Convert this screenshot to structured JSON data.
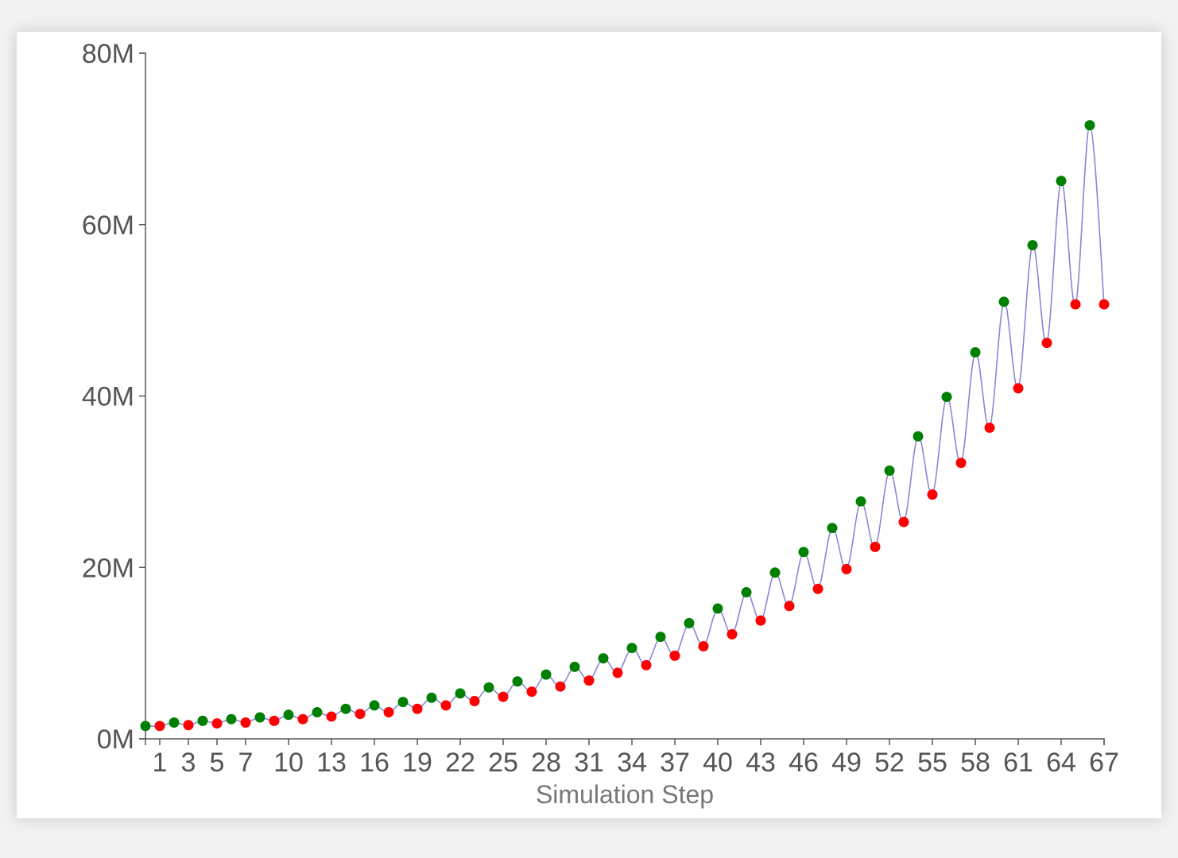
{
  "chart_data": {
    "type": "line",
    "title": "",
    "xlabel": "Simulation Step",
    "ylabel": "",
    "x_tick_labels": [
      "1",
      "3",
      "5",
      "7",
      "10",
      "13",
      "16",
      "19",
      "22",
      "25",
      "28",
      "31",
      "34",
      "37",
      "40",
      "43",
      "46",
      "49",
      "52",
      "55",
      "58",
      "61",
      "64",
      "67"
    ],
    "y_ticks": [
      0,
      20000000,
      40000000,
      60000000,
      80000000
    ],
    "y_tick_labels": [
      "0M",
      "20M",
      "40M",
      "60M",
      "80M"
    ],
    "xlim": [
      0,
      67
    ],
    "ylim": [
      0,
      80000000
    ],
    "grid": false,
    "colors": {
      "line": "#8a86d6",
      "up": "#008000",
      "down": "#ff0000",
      "axis": "#555555"
    },
    "x": [
      0,
      1,
      2,
      3,
      4,
      5,
      6,
      7,
      8,
      9,
      10,
      11,
      12,
      13,
      14,
      15,
      16,
      17,
      18,
      19,
      20,
      21,
      22,
      23,
      24,
      25,
      26,
      27,
      28,
      29,
      30,
      31,
      32,
      33,
      34,
      35,
      36,
      37,
      38,
      39,
      40,
      41,
      42,
      43,
      44,
      45,
      46,
      47,
      48,
      49,
      50,
      51,
      52,
      53,
      54,
      55,
      56,
      57,
      58,
      59,
      60,
      61,
      62,
      63,
      64,
      65,
      66,
      67
    ],
    "values": [
      1500000,
      1500000,
      1900000,
      1600000,
      2100000,
      1800000,
      2300000,
      1900000,
      2500000,
      2100000,
      2800000,
      2300000,
      3100000,
      2600000,
      3500000,
      2900000,
      3900000,
      3100000,
      4300000,
      3500000,
      4800000,
      3900000,
      5300000,
      4400000,
      6000000,
      4900000,
      6700000,
      5500000,
      7500000,
      6100000,
      8400000,
      6800000,
      9400000,
      7700000,
      10600000,
      8600000,
      11900000,
      9700000,
      13500000,
      10800000,
      15200000,
      12200000,
      17100000,
      13800000,
      19400000,
      15500000,
      21800000,
      17500000,
      24600000,
      19800000,
      27700000,
      22400000,
      31300000,
      25300000,
      35300000,
      28500000,
      39900000,
      32200000,
      45100000,
      36300000,
      51000000,
      40900000,
      57600000,
      46200000,
      65100000,
      50700000,
      71600000,
      50700000
    ],
    "point_types": [
      "up",
      "down",
      "up",
      "down",
      "up",
      "down",
      "up",
      "down",
      "up",
      "down",
      "up",
      "down",
      "up",
      "down",
      "up",
      "down",
      "up",
      "down",
      "up",
      "down",
      "up",
      "down",
      "up",
      "down",
      "up",
      "down",
      "up",
      "down",
      "up",
      "down",
      "up",
      "down",
      "up",
      "down",
      "up",
      "down",
      "up",
      "down",
      "up",
      "down",
      "up",
      "down",
      "up",
      "down",
      "up",
      "down",
      "up",
      "down",
      "up",
      "down",
      "up",
      "down",
      "up",
      "down",
      "up",
      "down",
      "up",
      "down",
      "up",
      "down",
      "up",
      "down",
      "up",
      "down",
      "up",
      "down",
      "up",
      "down"
    ]
  }
}
